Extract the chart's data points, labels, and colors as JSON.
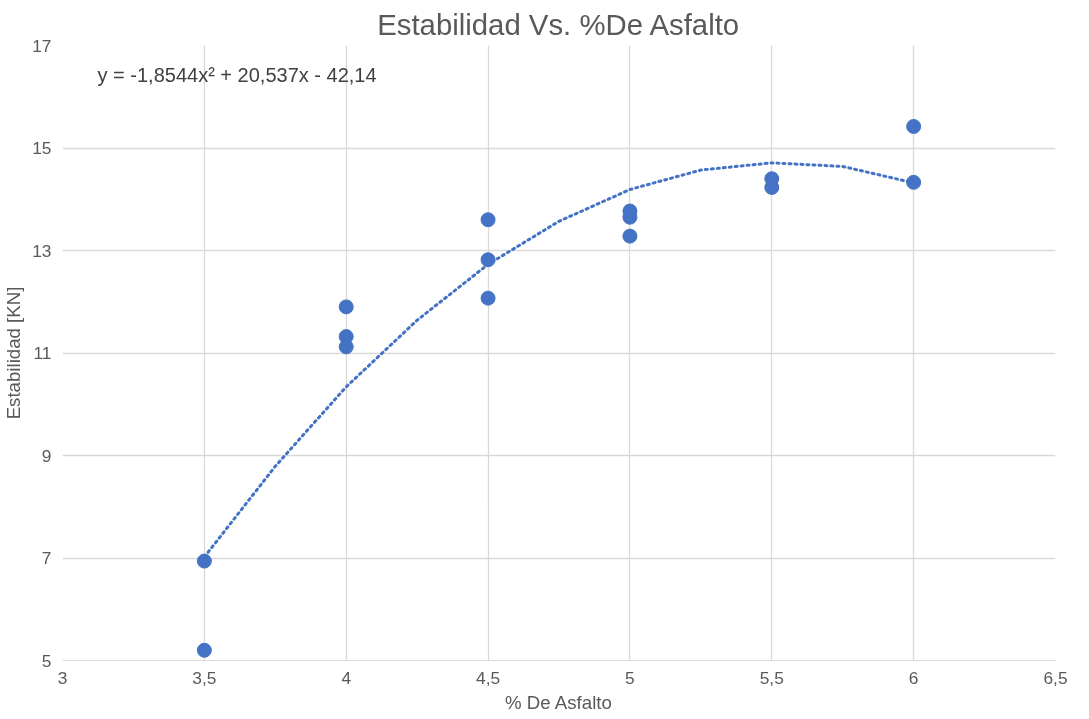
{
  "chart_data": {
    "type": "scatter",
    "title": "Estabilidad Vs. %De Asfalto",
    "xlabel": "% De Asfalto",
    "ylabel": "Estabilidad [KN]",
    "annotations": [
      "y = -1,8544x² + 20,537x - 42,14"
    ],
    "xlim": [
      3,
      6.5
    ],
    "ylim": [
      5,
      17
    ],
    "xticks": [
      3,
      {
        "value": 3.5,
        "label": "3,5"
      },
      4,
      {
        "value": 4.5,
        "label": "4,5"
      },
      5,
      {
        "value": 5.5,
        "label": "5,5"
      },
      6,
      {
        "value": 6.5,
        "label": "6,5"
      }
    ],
    "yticks": [
      5,
      7,
      9,
      11,
      13,
      15,
      17
    ],
    "grid": true,
    "marker": "circle",
    "series": [
      {
        "color": "#4472c4",
        "x": [
          3.5,
          3.5,
          4,
          4,
          4,
          4.5,
          4.5,
          4.5,
          5,
          5,
          5,
          5.5,
          5.5,
          6,
          6
        ],
        "values": [
          6.94,
          5.2,
          11.9,
          11.32,
          11.12,
          13.6,
          12.82,
          12.07,
          13.77,
          13.65,
          13.28,
          14.4,
          14.23,
          15.42,
          14.33
        ]
      },
      {
        "type": "line",
        "color": "#4472c4",
        "line_style": "dotted",
        "marker": "none",
        "x": [
          3.5,
          3.75,
          4,
          4.25,
          4.5,
          4.75,
          5,
          5.25,
          5.5,
          5.75,
          6
        ],
        "values": [
          7.02,
          8.79,
          10.34,
          11.64,
          12.73,
          13.57,
          14.19,
          14.57,
          14.71,
          14.64,
          14.32
        ]
      }
    ]
  }
}
